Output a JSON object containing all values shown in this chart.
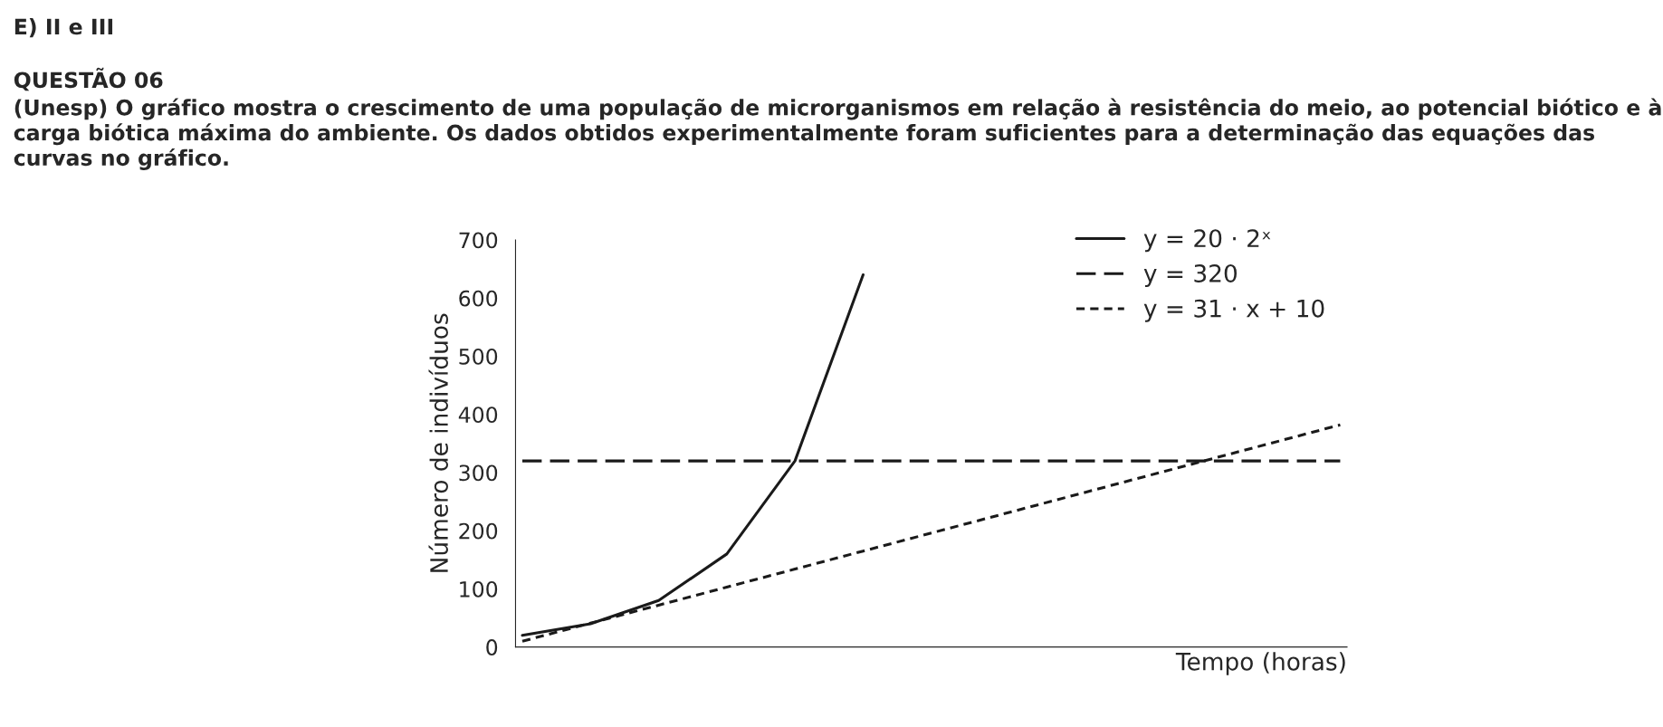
{
  "chart_data": {
    "type": "line",
    "title": "QUESTÃO 06",
    "subtitle": "(Unesp) O gráfico mostra o crescimento de uma população de microrganismos em relação à resistência do meio, ao potencial biótico e à carga biótica máxima do ambiente. Os dados obtidos experimentalmente foram suficientes para a determinação das equações das curvas no gráfico.",
    "annotations": [
      "E) II e III"
    ],
    "xlabel": "Tempo (horas)",
    "ylabel": "Número de indivíduos",
    "categories": [
      null,
      null,
      null,
      null,
      null,
      null,
      null,
      null,
      null,
      null,
      null,
      null,
      null
    ],
    "series": [
      {
        "name": "y = 20 · 2ˣ",
        "color": "#1a1a1a",
        "line_style": "solid",
        "values": [
          20,
          40,
          80,
          160,
          320,
          640,
          null,
          null,
          null,
          null,
          null,
          null,
          null
        ]
      },
      {
        "name": "y = 320",
        "color": "#1a1a1a",
        "line_style": "dashed",
        "values": [
          320,
          320,
          320,
          320,
          320,
          320,
          320,
          320,
          320,
          320,
          320,
          320,
          320
        ]
      },
      {
        "name": "y = 31 · x + 10",
        "color": "#1a1a1a",
        "line_style": "dotted",
        "values": [
          10,
          41,
          72,
          103,
          134,
          165,
          196,
          227,
          258,
          289,
          320,
          351,
          382
        ]
      }
    ],
    "ylim": [
      0,
      700
    ],
    "yticks": [
      0,
      100,
      200,
      300,
      400,
      500,
      600,
      700
    ],
    "legend": "top right",
    "grid": false,
    "marker": "none",
    "tick_labels": "y"
  }
}
